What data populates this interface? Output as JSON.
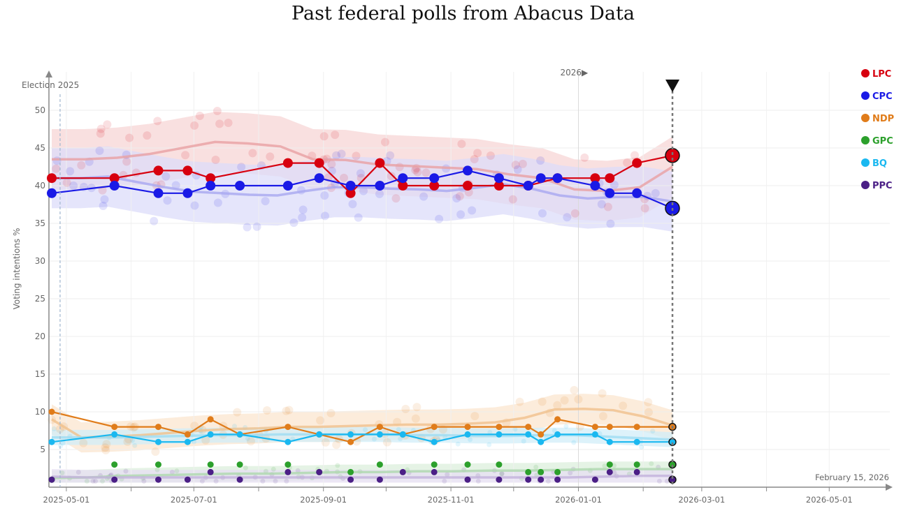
{
  "title": "Past federal polls from Abacus Data",
  "chart_data": {
    "type": "line",
    "title": "Past federal polls from Abacus Data",
    "ylabel": "Voting intentions %",
    "xlabel": "",
    "ylim": [
      0,
      52
    ],
    "yticks": [
      5,
      10,
      15,
      20,
      25,
      30,
      35,
      40,
      45,
      50
    ],
    "xlim": [
      "2025-04-24",
      "2026-05-31"
    ],
    "xticks": [
      {
        "date": "2025-05-01",
        "label": "2025-05-01"
      },
      {
        "date": "2025-07-01",
        "label": "2025-07-01"
      },
      {
        "date": "2025-09-01",
        "label": "2025-09-01"
      },
      {
        "date": "2025-11-01",
        "label": "2025-11-01"
      },
      {
        "date": "2026-01-01",
        "label": "2026-01-01"
      },
      {
        "date": "2026-03-01",
        "label": "2026-03-01"
      },
      {
        "date": "2026-05-01",
        "label": "2026-05-01"
      }
    ],
    "minor_ticks": [
      "2025-06-01",
      "2025-08-01",
      "2025-10-01",
      "2025-12-01",
      "2026-02-01",
      "2026-04-01"
    ],
    "annotations": {
      "election": {
        "date": "2025-04-28",
        "label": "Election 2025"
      },
      "year_marker": {
        "date": "2026-01-01",
        "label": "2026▶"
      },
      "current_date": {
        "date": "2026-02-15",
        "label": "February 15, 2026"
      }
    },
    "legend": [
      "LPC",
      "CPC",
      "NDP",
      "GPC",
      "BQ",
      "PPC"
    ],
    "series": [
      {
        "name": "LPC",
        "color": "#d7000f",
        "trend_color": "#e9a0a2",
        "band_color": "#f7d5d5",
        "values": [
          41,
          41,
          42,
          42,
          41,
          43,
          43,
          39,
          43,
          40,
          40,
          40,
          40,
          40,
          41,
          41,
          41,
          43,
          44
        ],
        "trend": [
          43.5,
          43.5,
          43.7,
          44.2,
          45,
          45.8,
          45.6,
          45.2,
          43.5,
          43.4,
          42.8,
          42.6,
          42.4,
          42.2,
          41.5,
          41,
          39.5,
          39.3,
          39.8,
          42.5
        ]
      },
      {
        "name": "CPC",
        "color": "#1a1ae6",
        "trend_color": "#a8a8f0",
        "band_color": "#dcdcfa",
        "values": [
          39,
          40,
          39,
          39,
          40,
          40,
          40,
          41,
          40,
          40,
          41,
          41,
          42,
          41,
          40,
          41,
          41,
          40,
          39,
          39,
          37
        ],
        "trend": [
          41,
          41,
          41.2,
          40.5,
          39.8,
          39.2,
          39,
          38.8,
          38.7,
          39.3,
          39.8,
          39.8,
          39.6,
          39.5,
          39.3,
          39.7,
          40.2,
          39.6,
          38.7,
          38.3,
          38.5,
          38.5,
          37.9
        ]
      },
      {
        "name": "NDP",
        "color": "#e07c1a",
        "trend_color": "#f0c08c",
        "band_color": "#fbe6cf",
        "values": [
          10,
          8,
          8,
          7,
          9,
          7,
          8,
          7,
          6,
          8,
          7,
          8,
          8,
          8,
          8,
          7,
          9,
          8,
          8,
          8,
          8
        ],
        "trend": [
          9,
          6.6,
          6.7,
          6.9,
          7.2,
          7.5,
          7.7,
          7.8,
          8,
          8,
          8.1,
          8.2,
          8.3,
          8.3,
          8.4,
          8.6,
          9.2,
          10.3,
          10.4,
          10.2,
          9.4,
          8.2
        ]
      },
      {
        "name": "GPC",
        "color": "#2ca02c",
        "trend_color": "#aed8ae",
        "band_color": "#dcefdc",
        "values": [
          1,
          3,
          3,
          3,
          3,
          3,
          2,
          2,
          3,
          3,
          3,
          3,
          2,
          2,
          2,
          3,
          3,
          3
        ],
        "trend": [
          1.2,
          1.3,
          1.5,
          1.6,
          1.7,
          1.8,
          1.8,
          1.9,
          2,
          2,
          2.1,
          2.1,
          2.2,
          2.2,
          2.3,
          2.4,
          2.4,
          2.4
        ]
      },
      {
        "name": "BQ",
        "color": "#1ab8f0",
        "trend_color": "#9fdcf2",
        "band_color": "#d2eef8",
        "values": [
          6,
          7,
          6,
          6,
          7,
          7,
          6,
          7,
          7,
          7,
          7,
          7,
          6,
          7,
          7,
          7,
          6,
          7,
          7,
          6,
          6,
          6
        ],
        "trend": [
          6.6,
          6.6,
          6.6,
          6.7,
          6.8,
          6.9,
          6.9,
          7,
          7,
          7,
          7,
          6.9,
          6.9,
          6.8,
          6.8,
          6.9,
          6.9,
          6.7,
          6.5,
          6.3
        ]
      },
      {
        "name": "PPC",
        "color": "#4b1f86",
        "trend_color": "#c3b2dc",
        "band_color": "#e6dff2",
        "values": [
          1,
          1,
          1,
          1,
          2,
          1,
          2,
          2,
          1,
          1,
          2,
          2,
          1,
          1,
          1,
          1,
          1,
          1,
          2,
          2,
          1
        ],
        "trend": [
          1.4,
          1.3,
          1.3,
          1.3,
          1.3,
          1.3,
          1.3,
          1.3,
          1.3,
          1.3,
          1.3,
          1.3,
          1.3,
          1.3,
          1.3,
          1.3,
          1.4,
          1.5,
          1.5
        ]
      }
    ]
  }
}
